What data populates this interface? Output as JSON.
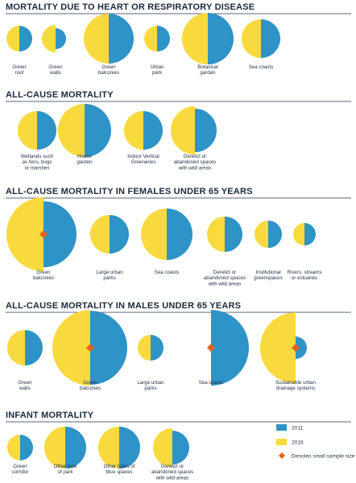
{
  "chart_data": {
    "type": "half-circle comparison",
    "colors": {
      "2011": "#2E93C6",
      "2016": "#F8DA3E",
      "marker": "#E2621B",
      "rule": "#24344a"
    },
    "legend": [
      {
        "key": "2011",
        "label": "2011"
      },
      {
        "key": "2016",
        "label": "2016"
      },
      {
        "key": "marker",
        "label": "Denotes small sample size"
      }
    ],
    "sections": [
      {
        "title": "MORTALITY DUE TO HEART OR RESPIRATORY DISEASE",
        "items": [
          {
            "label": [
              "Green",
              "roof"
            ],
            "v2016": 16,
            "v2011": 16,
            "small": false
          },
          {
            "label": [
              "Green",
              "walls"
            ],
            "v2016": 17,
            "v2011": 13,
            "small": false
          },
          {
            "label": [
              "Green",
              "balconies"
            ],
            "v2016": 31,
            "v2011": 31,
            "small": false
          },
          {
            "label": [
              "Urban",
              "park"
            ],
            "v2016": 16,
            "v2011": 16,
            "small": false
          },
          {
            "label": [
              "Botanical",
              "garden"
            ],
            "v2016": 32,
            "v2011": 32,
            "small": false
          },
          {
            "label": [
              "Sea coasts"
            ],
            "v2016": 24,
            "v2011": 24,
            "small": false
          }
        ]
      },
      {
        "title": "ALL-CAUSE MORTALITY",
        "items": [
          {
            "label": [
              "Wetlands such",
              "as fens, bogs",
              "or marshes"
            ],
            "v2016": 24,
            "v2011": 24,
            "small": false
          },
          {
            "label": [
              "House",
              "garden"
            ],
            "v2016": 33,
            "v2011": 33,
            "small": false
          },
          {
            "label": [
              "Indoor Vertical",
              "Greeneries"
            ],
            "v2016": 24,
            "v2011": 24,
            "small": false
          },
          {
            "label": [
              "Derelict or",
              "abandoned spaces",
              "with wild areas"
            ],
            "v2016": 30,
            "v2011": 27,
            "small": false
          }
        ]
      },
      {
        "title": "ALL-CAUSE MORTALITY IN FEMALES UNDER 65 YEARS",
        "items": [
          {
            "label": [
              "Green",
              "balconies"
            ],
            "v2016": 46,
            "v2011": 41,
            "small": true
          },
          {
            "label": [
              "Large urban",
              "parks"
            ],
            "v2016": 24,
            "v2011": 24,
            "small": false
          },
          {
            "label": [
              "Sea coasts"
            ],
            "v2016": 32,
            "v2011": 32,
            "small": false
          },
          {
            "label": [
              "Derelict or",
              "abandoned spaces",
              "with wild areas"
            ],
            "v2016": 22,
            "v2011": 22,
            "small": false
          },
          {
            "label": [
              "Institutional",
              "greenspaces"
            ],
            "v2016": 17,
            "v2011": 17,
            "small": false
          },
          {
            "label": [
              "Rivers, streams",
              "or estuaries"
            ],
            "v2016": 14,
            "v2011": 14,
            "small": false
          }
        ]
      },
      {
        "title": "ALL-CAUSE MORTALITY IN  MALES UNDER 65 YEARS",
        "items": [
          {
            "label": [
              "Green",
              "walls"
            ],
            "v2016": 22,
            "v2011": 22,
            "small": false
          },
          {
            "label": [
              "Green",
              "balconies"
            ],
            "v2016": 47,
            "v2011": 46,
            "small": true
          },
          {
            "label": [
              "Large urban",
              "parks"
            ],
            "v2016": 16,
            "v2011": 16,
            "small": false
          },
          {
            "label": [
              "Sea coasts"
            ],
            "v2016": 0,
            "v2011": 47,
            "small": true
          },
          {
            "label": [
              "Sustainable urban",
              "drainage systems"
            ],
            "v2016": 44,
            "v2011": 14,
            "small": true
          }
        ]
      },
      {
        "title": "INFANT MORTALITY",
        "items": [
          {
            "label": [
              "Green",
              "corridor"
            ],
            "v2016": 16,
            "v2011": 16,
            "small": false
          },
          {
            "label": [
              "Other type",
              "of park"
            ],
            "v2016": 26,
            "v2011": 26,
            "small": false
          },
          {
            "label": [
              "Other types of",
              "blue spaces"
            ],
            "v2016": 26,
            "v2011": 26,
            "small": false
          },
          {
            "label": [
              "Derelict or",
              "abandoned spaces",
              "with wild areas"
            ],
            "v2016": 24,
            "v2011": 21,
            "small": false
          }
        ]
      }
    ]
  }
}
